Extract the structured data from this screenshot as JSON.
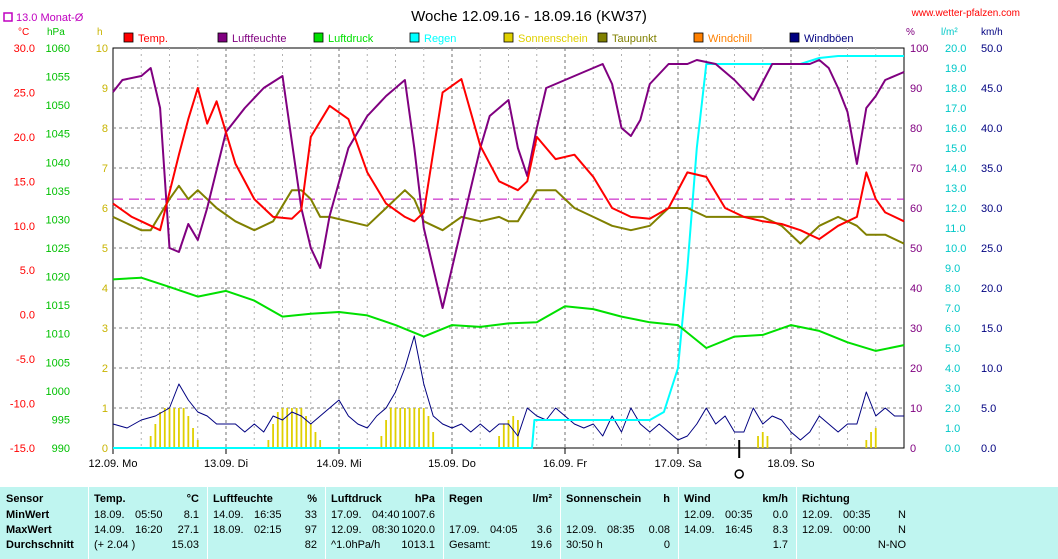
{
  "title": "Woche 12.09.16 - 18.09.16 (KW37)",
  "website": "www.wetter-pfalzen.com",
  "monthly_avg_label": "13.0 Monat-Ø",
  "colors": {
    "temp": "#ff0000",
    "humidity": "#800080",
    "pressure": "#00e000",
    "rain": "#00ffff",
    "sunshine": "#e0d000",
    "dewpoint": "#808000",
    "windchill": "#ff8000",
    "gusts": "#000080",
    "avg_line": "#c000c0",
    "stats_bg": "#bff5f0"
  },
  "axis_units": {
    "temp": "°C",
    "pressure": "hPa",
    "sunshine": "h",
    "humidity": "%",
    "rain": "l/m²",
    "wind": "km/h"
  },
  "chart_data": {
    "type": "line",
    "x_unit": "hours since 12.09. 00:00",
    "xlim": [
      0,
      168
    ],
    "day_labels": [
      "12.09. Mo",
      "13.09. Di",
      "14.09. Mi",
      "15.09. Do",
      "16.09. Fr",
      "17.09. Sa",
      "18.09. So"
    ],
    "day_ticks": [
      0,
      24,
      48,
      72,
      96,
      120,
      144
    ],
    "grid": true,
    "monthly_avg_temp": 13.0,
    "axes": {
      "temp": {
        "ylim": [
          -15,
          30
        ],
        "ticks": [
          "30.0",
          "25.0",
          "20.0",
          "15.0",
          "10.0",
          "5.0",
          "0.0",
          "-5.0",
          "-10.0",
          "-15.0"
        ]
      },
      "pressure": {
        "ylim": [
          990,
          1060
        ],
        "ticks": [
          "1060",
          "1055",
          "1050",
          "1045",
          "1040",
          "1035",
          "1030",
          "1025",
          "1020",
          "1015",
          "1010",
          "1005",
          "1000",
          "995",
          "990"
        ]
      },
      "sunshine": {
        "ylim": [
          0,
          10
        ],
        "ticks": [
          "10",
          "9",
          "8",
          "7",
          "6",
          "5",
          "4",
          "3",
          "2",
          "1",
          "0"
        ]
      },
      "humidity": {
        "ylim": [
          0,
          100
        ],
        "ticks": [
          "100",
          "90",
          "80",
          "70",
          "60",
          "50",
          "40",
          "30",
          "20",
          "10",
          "0"
        ]
      },
      "rain": {
        "ylim": [
          0,
          20
        ],
        "ticks": [
          "20.0",
          "19.0",
          "18.0",
          "17.0",
          "16.0",
          "15.0",
          "14.0",
          "13.0",
          "12.0",
          "11.0",
          "10.0",
          "9.0",
          "8.0",
          "7.0",
          "6.0",
          "5.0",
          "4.0",
          "3.0",
          "2.0",
          "1.0",
          "0.0"
        ]
      },
      "wind": {
        "ylim": [
          0,
          50
        ],
        "ticks": [
          "50.0",
          "45.0",
          "40.0",
          "35.0",
          "30.0",
          "25.0",
          "20.0",
          "15.0",
          "10.0",
          "5.0",
          "0.0"
        ]
      }
    },
    "legend": [
      "Temp.",
      "Luftfeuchte",
      "Luftdruck",
      "Regen",
      "Sonnenschein",
      "Taupunkt",
      "Windchill",
      "Windböen"
    ],
    "series": [
      {
        "name": "Temp.",
        "axis": "temp",
        "color": "#ff0000",
        "x": [
          0,
          4,
          6,
          10,
          14,
          16,
          18,
          20,
          22,
          26,
          30,
          34,
          38,
          40,
          42,
          46,
          50,
          54,
          58,
          62,
          64,
          66,
          70,
          74,
          78,
          82,
          86,
          88,
          90,
          94,
          98,
          102,
          106,
          110,
          114,
          118,
          122,
          126,
          130,
          134,
          138,
          142,
          146,
          150,
          154,
          158,
          160,
          162,
          164,
          168
        ],
        "y": [
          12.5,
          11.0,
          10.5,
          9.5,
          18.0,
          22.0,
          25.5,
          21.5,
          24.0,
          17.0,
          13.0,
          11.0,
          10.8,
          11.8,
          20.0,
          23.5,
          22.0,
          16.0,
          12.5,
          11.0,
          10.5,
          11.5,
          25.0,
          26.5,
          19.0,
          15.0,
          14.0,
          15.0,
          20.0,
          17.5,
          18.0,
          15.5,
          12.0,
          11.0,
          10.8,
          12.0,
          16.0,
          15.5,
          12.0,
          11.0,
          10.5,
          10.2,
          9.5,
          8.5,
          10.0,
          11.0,
          16.0,
          13.0,
          11.5,
          10.5
        ]
      },
      {
        "name": "Luftfeuchte",
        "axis": "humidity",
        "color": "#800080",
        "x": [
          0,
          2,
          6,
          8,
          10,
          12,
          14,
          16,
          18,
          20,
          24,
          28,
          32,
          36,
          40,
          42,
          44,
          46,
          50,
          54,
          58,
          62,
          64,
          66,
          70,
          74,
          78,
          80,
          84,
          86,
          88,
          90,
          92,
          96,
          100,
          104,
          106,
          108,
          110,
          112,
          114,
          118,
          122,
          124,
          128,
          132,
          136,
          140,
          144,
          148,
          150,
          152,
          154,
          156,
          158,
          160,
          162,
          164,
          168
        ],
        "y": [
          89,
          92,
          93,
          95,
          85,
          50,
          49,
          56,
          52,
          60,
          79,
          85,
          90,
          93,
          60,
          50,
          45,
          58,
          75,
          83,
          88,
          92,
          75,
          55,
          35,
          55,
          75,
          83,
          87,
          75,
          68,
          80,
          90,
          92,
          94,
          96,
          91,
          80,
          78,
          82,
          91,
          96,
          96,
          97,
          96,
          92,
          87,
          96,
          96,
          96,
          97,
          95,
          90,
          84,
          71,
          85,
          88,
          92,
          94
        ]
      },
      {
        "name": "Luftdruck",
        "axis": "pressure",
        "color": "#00e000",
        "x": [
          0,
          6,
          12,
          18,
          24,
          30,
          36,
          42,
          48,
          54,
          60,
          66,
          72,
          78,
          84,
          90,
          96,
          102,
          108,
          114,
          120,
          126,
          132,
          138,
          144,
          150,
          156,
          162,
          168
        ],
        "y": [
          1019.5,
          1019.8,
          1018.2,
          1016.5,
          1017.5,
          1015.8,
          1013,
          1013.5,
          1013.8,
          1013.2,
          1011.5,
          1009.5,
          1011.5,
          1011.2,
          1011.8,
          1012,
          1014.8,
          1014.3,
          1013,
          1012,
          1011.5,
          1007.5,
          1009.5,
          1009.8,
          1011.5,
          1010.5,
          1008.5,
          1007,
          1008
        ]
      },
      {
        "name": "Taupunkt",
        "axis": "temp",
        "color": "#808000",
        "x": [
          0,
          6,
          8,
          12,
          14,
          16,
          18,
          22,
          26,
          30,
          34,
          38,
          40,
          42,
          44,
          46,
          50,
          54,
          58,
          62,
          64,
          66,
          70,
          74,
          78,
          82,
          84,
          86,
          90,
          94,
          98,
          102,
          106,
          110,
          114,
          118,
          122,
          126,
          130,
          134,
          138,
          142,
          146,
          150,
          154,
          158,
          160,
          164,
          168
        ],
        "y": [
          11,
          9.5,
          9.5,
          13,
          14.5,
          13,
          14,
          12,
          10.5,
          9.5,
          10.5,
          14,
          14,
          13,
          11,
          11,
          10.5,
          10,
          12,
          14,
          13,
          10.5,
          9.5,
          11,
          10.5,
          11,
          10.5,
          10.5,
          14,
          14,
          12,
          11,
          10,
          9.5,
          10,
          12,
          12,
          11,
          11,
          11,
          11,
          10,
          8,
          10,
          11,
          10,
          9,
          9,
          8
        ]
      },
      {
        "name": "Regen",
        "axis": "rain",
        "color": "#00ffff",
        "x": [
          0,
          89,
          89.5,
          114,
          117,
          120,
          122,
          124,
          126,
          132,
          140,
          146,
          150,
          154,
          160,
          168
        ],
        "y": [
          0,
          0,
          1.4,
          1.4,
          1.8,
          4,
          9,
          15,
          19.2,
          19.2,
          19.2,
          19.2,
          19.5,
          19.6,
          19.6,
          19.6
        ]
      },
      {
        "name": "Windböen",
        "axis": "wind",
        "color": "#000080",
        "x": [
          0,
          3,
          6,
          9,
          12,
          14,
          16,
          18,
          20,
          22,
          24,
          26,
          28,
          30,
          32,
          34,
          36,
          38,
          40,
          42,
          44,
          46,
          48,
          50,
          52,
          54,
          56,
          58,
          60,
          62,
          64,
          66,
          68,
          70,
          72,
          74,
          76,
          78,
          80,
          82,
          84,
          86,
          88,
          90,
          92,
          94,
          96,
          98,
          100,
          102,
          104,
          106,
          108,
          110,
          112,
          114,
          116,
          118,
          120,
          122,
          124,
          126,
          128,
          130,
          132,
          134,
          136,
          138,
          140,
          142,
          144,
          146,
          148,
          150,
          152,
          154,
          156,
          158,
          160,
          162,
          164,
          166,
          168
        ],
        "y": [
          3,
          2.5,
          3.5,
          4,
          5,
          8,
          6,
          4.5,
          4,
          3,
          3,
          3,
          2,
          3,
          2,
          4,
          3.5,
          4.5,
          4,
          3,
          4,
          5,
          6,
          4,
          3,
          2.5,
          4,
          5,
          7,
          10,
          14,
          8,
          4,
          3,
          2.5,
          3,
          2,
          3,
          2,
          3,
          3,
          1.5,
          5,
          4,
          3.5,
          5,
          4,
          3,
          2.5,
          3,
          1.5,
          4,
          2,
          5,
          3,
          2,
          3,
          2,
          1,
          1.5,
          3,
          5,
          3,
          4,
          2,
          2,
          5,
          3,
          4,
          3.5,
          2,
          1,
          2,
          4,
          3,
          2,
          3,
          3,
          7,
          4,
          5,
          4,
          4
        ]
      },
      {
        "name": "Sonnenschein",
        "axis": "sunshine",
        "color": "#e0d000",
        "x": [
          8,
          9,
          10,
          11,
          12,
          13,
          14,
          15,
          16,
          17,
          18,
          33,
          34,
          35,
          36,
          37,
          38,
          39,
          40,
          41,
          42,
          43,
          44,
          57,
          58,
          59,
          60,
          61,
          62,
          63,
          64,
          65,
          66,
          67,
          68,
          82,
          83,
          84,
          85,
          86,
          137,
          138,
          139,
          160,
          161,
          162
        ],
        "y": [
          0.3,
          0.6,
          0.9,
          1,
          1,
          1,
          1,
          1,
          0.8,
          0.5,
          0.2,
          0.2,
          0.6,
          0.9,
          1,
          1,
          1,
          1,
          1,
          0.8,
          0.6,
          0.4,
          0.2,
          0.3,
          0.7,
          1,
          1,
          1,
          1,
          1,
          1,
          1,
          1,
          0.8,
          0.4,
          0.3,
          0.6,
          0.7,
          0.8,
          0.7,
          0.3,
          0.4,
          0.3,
          0.2,
          0.4,
          0.5
        ]
      }
    ]
  },
  "stats": {
    "columns": [
      {
        "header": "Sensor",
        "unit": "",
        "rows": [
          {
            "a": "MinWert",
            "b": "",
            "v": ""
          },
          {
            "a": "MaxWert",
            "b": "",
            "v": ""
          },
          {
            "a": "Durchschnitt",
            "b": "",
            "v": ""
          }
        ]
      },
      {
        "header": "Temp.",
        "unit": "°C",
        "rows": [
          {
            "a": "18.09.",
            "b": "05:50",
            "v": "8.1"
          },
          {
            "a": "14.09.",
            "b": "16:20",
            "v": "27.1"
          },
          {
            "a": "(+ 2.04 )",
            "b": "",
            "v": "15.03"
          }
        ]
      },
      {
        "header": "Luftfeuchte",
        "unit": "%",
        "rows": [
          {
            "a": "14.09.",
            "b": "16:35",
            "v": "33"
          },
          {
            "a": "18.09.",
            "b": "02:15",
            "v": "97"
          },
          {
            "a": "",
            "b": "",
            "v": "82"
          }
        ]
      },
      {
        "header": "Luftdruck",
        "unit": "hPa",
        "rows": [
          {
            "a": "17.09.",
            "b": "04:40",
            "v": "1007.6"
          },
          {
            "a": "12.09.",
            "b": "08:30",
            "v": "1020.0"
          },
          {
            "a": "^1.0hPa/h",
            "b": "",
            "v": "1013.1"
          }
        ]
      },
      {
        "header": "Regen",
        "unit": "l/m²",
        "rows": [
          {
            "a": "",
            "b": "",
            "v": ""
          },
          {
            "a": "17.09.",
            "b": "04:05",
            "v": "3.6"
          },
          {
            "a": "Gesamt:",
            "b": "",
            "v": "19.6"
          }
        ]
      },
      {
        "header": "Sonnenschein",
        "unit": "h",
        "rows": [
          {
            "a": "",
            "b": "",
            "v": ""
          },
          {
            "a": "12.09.",
            "b": "08:35",
            "v": "0.08"
          },
          {
            "a": "30:50 h",
            "b": "",
            "v": "0"
          }
        ]
      },
      {
        "header": "Wind",
        "unit": "km/h",
        "rows": [
          {
            "a": "12.09.",
            "b": "00:35",
            "v": "0.0"
          },
          {
            "a": "14.09.",
            "b": "16:45",
            "v": "8.3"
          },
          {
            "a": "",
            "b": "",
            "v": "1.7"
          }
        ]
      },
      {
        "header": "Richtung",
        "unit": "",
        "rows": [
          {
            "a": "12.09.",
            "b": "00:35",
            "v": "N"
          },
          {
            "a": "12.09.",
            "b": "00:00",
            "v": "N"
          },
          {
            "a": "",
            "b": "",
            "v": "N-NO"
          }
        ]
      }
    ]
  }
}
